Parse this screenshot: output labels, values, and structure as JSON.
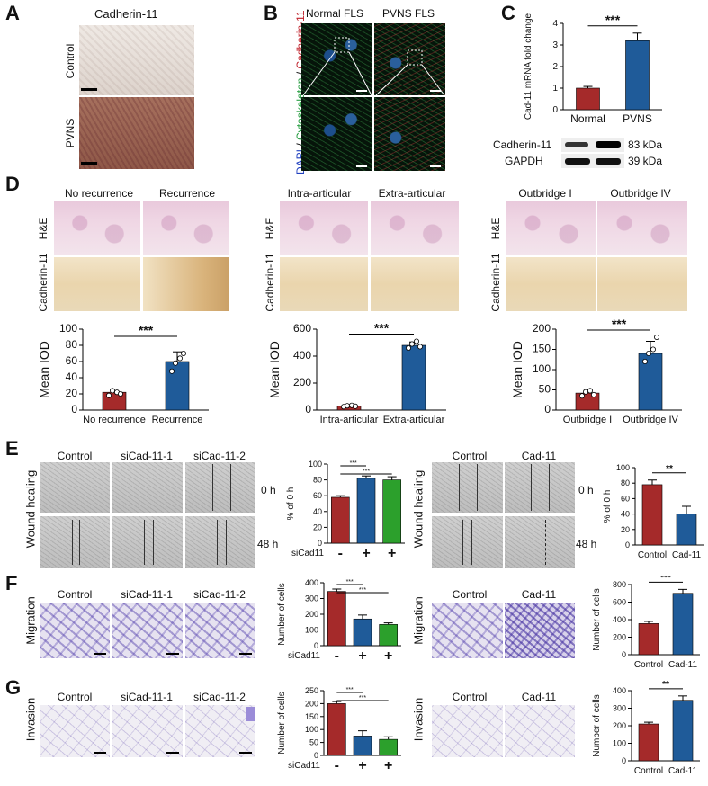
{
  "panels": {
    "A": {
      "label": "A",
      "title": "Cadherin-11",
      "rows": [
        "Control",
        "PVNS"
      ]
    },
    "B": {
      "label": "B",
      "cols": [
        "Normal FLS",
        "PVNS FLS"
      ],
      "stain": {
        "dapi": "DAPI",
        "sep1": " / ",
        "cyto": "Cytoskeleton",
        "sep2": " / ",
        "cad": "Cadherin-11"
      }
    },
    "C": {
      "label": "C",
      "blot": [
        {
          "name": "Cadherin-11",
          "kda": "83 kDa"
        },
        {
          "name": "GAPDH",
          "kda": "39 kDa"
        }
      ]
    },
    "D": {
      "label": "D",
      "groups": [
        {
          "cols": [
            "No recurrence",
            "Recurrence"
          ],
          "rows": [
            "H&E",
            "Cadherin-11"
          ]
        },
        {
          "cols": [
            "Intra-articular",
            "Extra-articular"
          ],
          "rows": [
            "H&E",
            "Cadherin-11"
          ]
        },
        {
          "cols": [
            "Outbridge I",
            "Outbridge IV"
          ],
          "rows": [
            "H&E",
            "Cadherin-11"
          ]
        }
      ]
    },
    "E": {
      "label": "E",
      "row_label": "Wound healing",
      "cols_left": [
        "Control",
        "siCad-11-1",
        "siCad-11-2"
      ],
      "cols_right": [
        "Control",
        "Cad-11"
      ],
      "times": [
        "0 h",
        "48 h"
      ]
    },
    "F": {
      "label": "F",
      "row_label": "Migration",
      "cols_left": [
        "Control",
        "siCad-11-1",
        "siCad-11-2"
      ],
      "cols_right": [
        "Control",
        "Cad-11"
      ]
    },
    "G": {
      "label": "G",
      "row_label": "Invasion",
      "cols_left": [
        "Control",
        "siCad-11-1",
        "siCad-11-2"
      ],
      "cols_right": [
        "Control",
        "Cad-11"
      ]
    }
  },
  "colors": {
    "red": "#a52a2a",
    "blue": "#1f5b99",
    "green": "#2ca02c"
  },
  "chart_data": [
    {
      "id": "C",
      "type": "bar",
      "categories": [
        "Normal",
        "PVNS"
      ],
      "values": [
        1.0,
        3.2
      ],
      "errors": [
        0.08,
        0.35
      ],
      "ylabel": "Cad-11 mRNA fold change",
      "ylim": [
        0,
        4
      ],
      "yticks": [
        0,
        1,
        2,
        3,
        4
      ],
      "sig": "***",
      "colors": [
        "red",
        "blue"
      ]
    },
    {
      "id": "D1",
      "type": "bar",
      "categories": [
        "No recurrence",
        "Recurrence"
      ],
      "values": [
        22,
        60
      ],
      "errors": [
        4,
        12
      ],
      "points": [
        [
          18,
          24,
          22,
          20
        ],
        [
          48,
          58,
          64,
          70
        ]
      ],
      "ylabel": "Mean IOD",
      "ylim": [
        0,
        100
      ],
      "yticks": [
        0,
        20,
        40,
        60,
        80,
        100
      ],
      "sig": "***",
      "colors": [
        "red",
        "blue"
      ]
    },
    {
      "id": "D2",
      "type": "bar",
      "categories": [
        "Intra-articular",
        "Extra-articular"
      ],
      "values": [
        30,
        480
      ],
      "errors": [
        6,
        25
      ],
      "points": [
        [
          25,
          32,
          35,
          28
        ],
        [
          460,
          490,
          510,
          470
        ]
      ],
      "ylabel": "Mean IOD",
      "ylim": [
        0,
        600
      ],
      "yticks": [
        0,
        200,
        400,
        600
      ],
      "sig": "***",
      "colors": [
        "red",
        "blue"
      ]
    },
    {
      "id": "D3",
      "type": "bar",
      "categories": [
        "Outbridge I",
        "Outbridge IV"
      ],
      "values": [
        42,
        140
      ],
      "errors": [
        10,
        30
      ],
      "points": [
        [
          35,
          45,
          48,
          38
        ],
        [
          120,
          140,
          150,
          180
        ]
      ],
      "ylabel": "Mean IOD",
      "ylim": [
        0,
        200
      ],
      "yticks": [
        0,
        50,
        100,
        150,
        200
      ],
      "sig": "***",
      "colors": [
        "red",
        "blue"
      ]
    },
    {
      "id": "E1",
      "type": "bar",
      "categories": [
        "-",
        "+",
        "+"
      ],
      "values": [
        58,
        82,
        80
      ],
      "errors": [
        2,
        3,
        4
      ],
      "ylabel": "% of 0 h",
      "ylim": [
        0,
        100
      ],
      "yticks": [
        0,
        20,
        40,
        60,
        80,
        100
      ],
      "sig": [
        "***",
        "***"
      ],
      "xlabel": "siCad11",
      "colors": [
        "red",
        "blue",
        "green"
      ]
    },
    {
      "id": "E2",
      "type": "bar",
      "categories": [
        "Control",
        "Cad-11"
      ],
      "values": [
        78,
        40
      ],
      "errors": [
        6,
        10
      ],
      "ylabel": "% of 0 h",
      "ylim": [
        0,
        100
      ],
      "yticks": [
        0,
        20,
        40,
        60,
        80,
        100
      ],
      "sig": "**",
      "colors": [
        "red",
        "blue"
      ]
    },
    {
      "id": "F1",
      "type": "bar",
      "categories": [
        "-",
        "+",
        "+"
      ],
      "values": [
        345,
        170,
        135
      ],
      "errors": [
        15,
        25,
        10
      ],
      "ylabel": "Number of cells",
      "ylim": [
        0,
        400
      ],
      "yticks": [
        0,
        100,
        200,
        300,
        400
      ],
      "sig": [
        "***",
        "***"
      ],
      "xlabel": "siCad11",
      "colors": [
        "red",
        "blue",
        "green"
      ]
    },
    {
      "id": "F2",
      "type": "bar",
      "categories": [
        "Control",
        "Cad-11"
      ],
      "values": [
        355,
        700
      ],
      "errors": [
        25,
        45
      ],
      "ylabel": "Number of cells",
      "ylim": [
        0,
        800
      ],
      "yticks": [
        0,
        200,
        400,
        600,
        800
      ],
      "sig": "***",
      "colors": [
        "red",
        "blue"
      ]
    },
    {
      "id": "G1",
      "type": "bar",
      "categories": [
        "-",
        "+",
        "+"
      ],
      "values": [
        200,
        75,
        62
      ],
      "errors": [
        8,
        20,
        10
      ],
      "ylabel": "Number of cells",
      "ylim": [
        0,
        250
      ],
      "yticks": [
        0,
        50,
        100,
        150,
        200,
        250
      ],
      "sig": [
        "***",
        "***"
      ],
      "xlabel": "siCad11",
      "colors": [
        "red",
        "blue",
        "green"
      ]
    },
    {
      "id": "G2",
      "type": "bar",
      "categories": [
        "Control",
        "Cad-11"
      ],
      "values": [
        210,
        345
      ],
      "errors": [
        10,
        25
      ],
      "ylabel": "Number of cells",
      "ylim": [
        0,
        400
      ],
      "yticks": [
        0,
        100,
        200,
        300,
        400
      ],
      "sig": "**",
      "colors": [
        "red",
        "blue"
      ]
    }
  ]
}
